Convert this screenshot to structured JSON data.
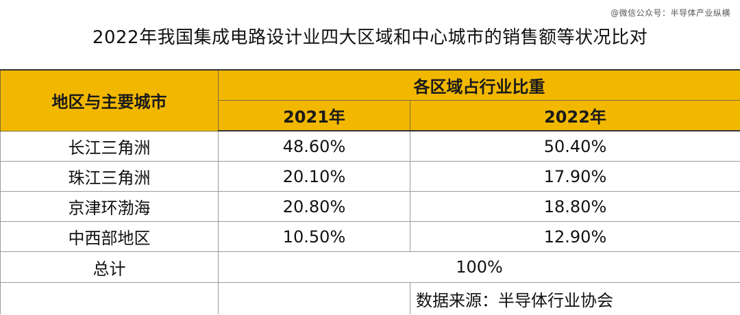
{
  "watermark": "@微信公众号：半导体产业纵横",
  "title": "2022年我国集成电路设计业四大区域和中心城市的销售额等状况比对",
  "table": {
    "header_region": "地区与主要城市",
    "header_share": "各区域占行业比重",
    "header_year1": "2021年",
    "header_year2": "2022年",
    "rows": [
      {
        "region": "长江三角洲",
        "y2021": "48.60%",
        "y2022": "50.40%"
      },
      {
        "region": "珠江三角洲",
        "y2021": "20.10%",
        "y2022": "17.90%"
      },
      {
        "region": "京津环渤海",
        "y2021": "20.80%",
        "y2022": "18.80%"
      },
      {
        "region": "中西部地区",
        "y2021": "10.50%",
        "y2022": "12.90%"
      }
    ],
    "total_label": "总计",
    "total_value": "100%",
    "source": "数据来源：半导体行业协会"
  },
  "colors": {
    "header_bg": "#f2b800",
    "border": "#9a9a9a"
  }
}
